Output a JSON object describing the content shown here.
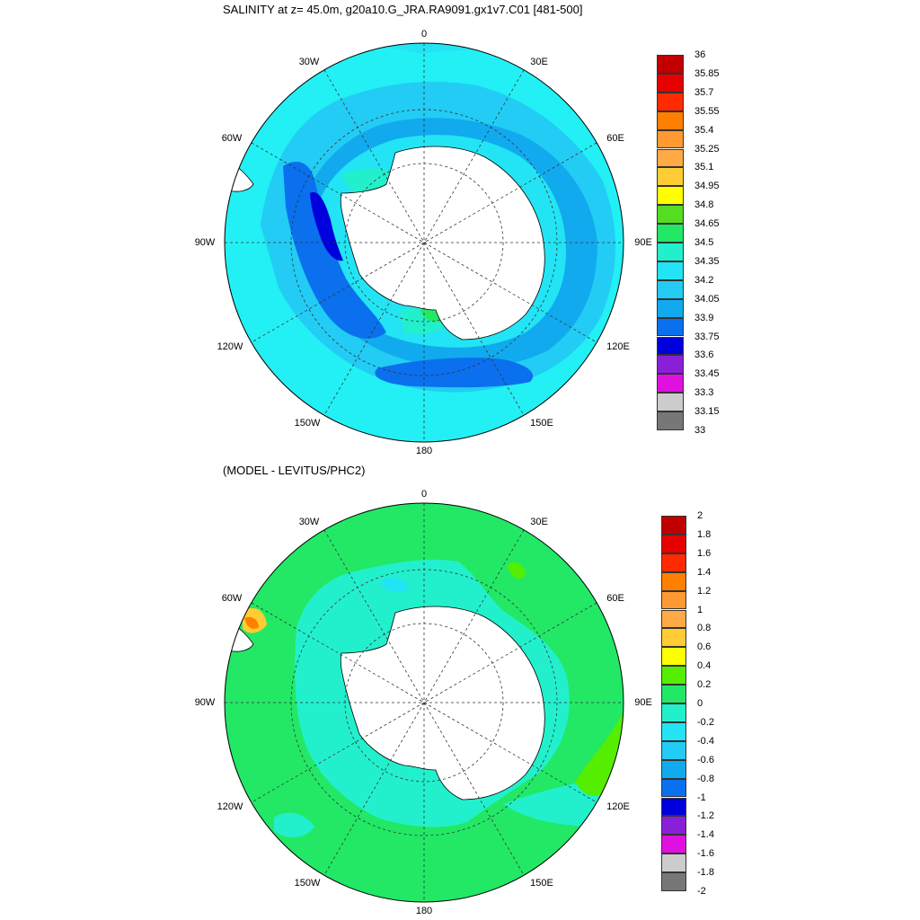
{
  "top": {
    "title": "SALINITY at z=  45.0m, g20a10.G_JRA.RA9091.gx1v7.C01 [481-500]",
    "lon_labels": {
      "lon0": "0",
      "lon30e": "30E",
      "lon60e": "60E",
      "lon90e": "90E",
      "lon120e": "120E",
      "lon150e": "150E",
      "lon180": "180",
      "lon150w": "150W",
      "lon120w": "120W",
      "lon90w": "90W",
      "lon60w": "60W",
      "lon30w": "30W"
    },
    "colorbar": {
      "labels": [
        "36",
        "35.85",
        "35.7",
        "35.55",
        "35.4",
        "35.25",
        "35.1",
        "34.95",
        "34.8",
        "34.65",
        "34.5",
        "34.35",
        "34.2",
        "34.05",
        "33.9",
        "33.75",
        "33.6",
        "33.45",
        "33.3",
        "33.15",
        "33"
      ],
      "colors": [
        "#c00000",
        "#e60000",
        "#ff2a00",
        "#ff8000",
        "#ff9a33",
        "#ffaa44",
        "#ffcc33",
        "#ffff00",
        "#55dd22",
        "#22e866",
        "#22f0cc",
        "#22e4f4",
        "#22ccf4",
        "#11aaee",
        "#0a70ee",
        "#0000dd",
        "#8a1fd8",
        "#e011e0",
        "#cccccc",
        "#777777"
      ]
    }
  },
  "bottom": {
    "title": "(MODEL - LEVITUS/PHC2)",
    "lon_labels": {
      "lon0": "0",
      "lon30e": "30E",
      "lon60e": "60E",
      "lon90e": "90E",
      "lon120e": "120E",
      "lon150e": "150E",
      "lon180": "180",
      "lon150w": "150W",
      "lon120w": "120W",
      "lon90w": "90W",
      "lon60w": "60W",
      "lon30w": "30W"
    },
    "colorbar": {
      "labels": [
        "2",
        "1.8",
        "1.6",
        "1.4",
        "1.2",
        "1",
        "0.8",
        "0.6",
        "0.4",
        "0.2",
        "0",
        "-0.2",
        "-0.4",
        "-0.6",
        "-0.8",
        "-1",
        "-1.2",
        "-1.4",
        "-1.6",
        "-1.8",
        "-2"
      ],
      "colors": [
        "#c00000",
        "#e60000",
        "#ff2a00",
        "#ff8000",
        "#ff9a33",
        "#ffaa44",
        "#ffcc33",
        "#ffff00",
        "#55ee00",
        "#22e866",
        "#22f0cc",
        "#22e4f4",
        "#22ccf4",
        "#11aaee",
        "#0a70ee",
        "#0000dd",
        "#8a1fd8",
        "#e011e0",
        "#cccccc",
        "#777777"
      ]
    }
  }
}
